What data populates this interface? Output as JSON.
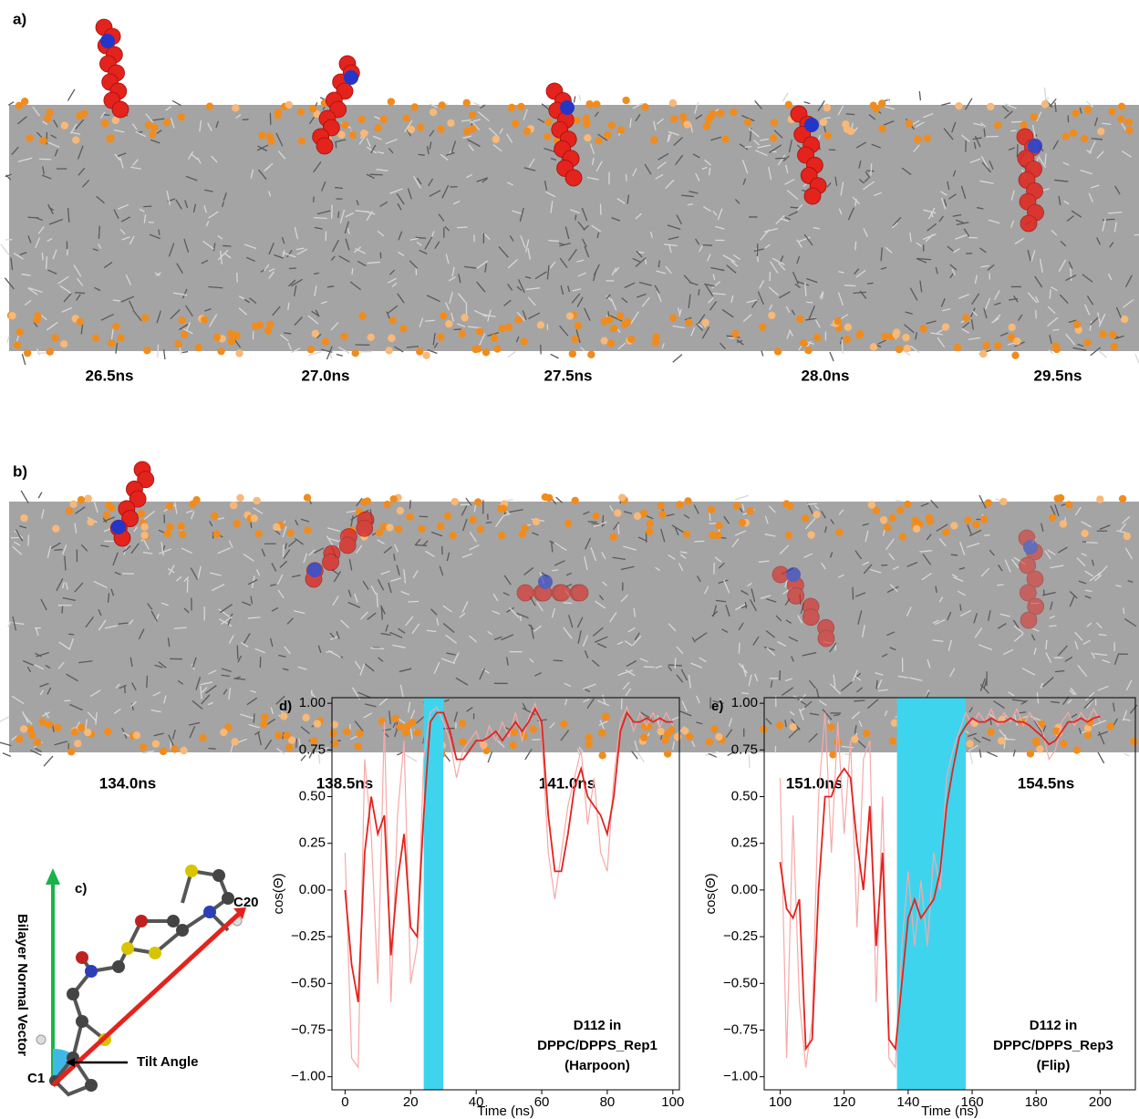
{
  "panels": {
    "a": {
      "label": "a)",
      "times": [
        "26.5ns",
        "27.0ns",
        "27.5ns",
        "28.0ns",
        "29.5ns"
      ]
    },
    "b": {
      "label": "b)",
      "times": [
        "134.0ns",
        "138.5ns",
        "141.0ns",
        "151.0ns",
        "154.5ns"
      ]
    },
    "c": {
      "label": "c)",
      "axis_label": "Bilayer Normal Vector",
      "atom_top": "C20",
      "atom_bottom": "C1",
      "angle_label": "Tilt Angle"
    }
  },
  "chart_data": [
    {
      "type": "line",
      "label": "d)",
      "xlabel": "Time (ns)",
      "ylabel": "cos(Θ)",
      "annotation": [
        "D112 in",
        "DPPC/DPPS_Rep1",
        "(Harpoon)"
      ],
      "xlim": [
        -4,
        102
      ],
      "ylim": [
        -1.07,
        1.03
      ],
      "xticks": [
        0,
        20,
        40,
        60,
        80,
        100
      ],
      "yticks": [
        {
          "value": 1,
          "label": "1.00"
        },
        {
          "value": 0.75,
          "label": "0.75"
        },
        {
          "value": 0.5,
          "label": "0.50"
        },
        {
          "value": 0.25,
          "label": "0.25"
        },
        {
          "value": 0,
          "label": "0.00"
        },
        {
          "value": -0.25,
          "label": "−0.25"
        },
        {
          "value": -0.5,
          "label": "−0.50"
        },
        {
          "value": -0.75,
          "label": "−0.75"
        },
        {
          "value": -1,
          "label": "−1.00"
        }
      ],
      "highlight": {
        "range": [
          24,
          30
        ],
        "color": "#3fd4ee"
      },
      "x": [
        0,
        2,
        4,
        6,
        8,
        10,
        12,
        14,
        16,
        18,
        20,
        22,
        24,
        26,
        28,
        30,
        32,
        34,
        36,
        38,
        40,
        42,
        44,
        46,
        48,
        50,
        52,
        54,
        56,
        58,
        60,
        62,
        64,
        66,
        68,
        70,
        72,
        74,
        76,
        78,
        80,
        82,
        84,
        86,
        88,
        90,
        92,
        94,
        96,
        98,
        100
      ],
      "series": [
        {
          "color": "#f6a9a9",
          "values": [
            0.2,
            -0.9,
            -0.95,
            0.7,
            0.3,
            -0.5,
            0.9,
            -0.6,
            0.4,
            0.8,
            -0.5,
            -0.3,
            0.7,
            0.95,
            0.98,
            0.9,
            0.8,
            0.6,
            0.75,
            0.8,
            0.85,
            0.75,
            0.88,
            0.8,
            0.9,
            0.82,
            0.95,
            0.8,
            0.92,
            1.0,
            0.85,
            0.2,
            -0.05,
            0.2,
            0.45,
            0.6,
            0.75,
            0.35,
            0.6,
            0.2,
            0.1,
            0.6,
            0.9,
            0.98,
            0.85,
            0.95,
            0.88,
            0.95,
            0.87,
            0.95,
            0.88
          ]
        },
        {
          "color": "#e3231c",
          "values": [
            0.0,
            -0.4,
            -0.6,
            0.2,
            0.5,
            0.3,
            0.4,
            -0.35,
            0.05,
            0.3,
            -0.2,
            -0.25,
            0.4,
            0.9,
            0.95,
            0.95,
            0.85,
            0.7,
            0.7,
            0.75,
            0.8,
            0.8,
            0.82,
            0.85,
            0.8,
            0.85,
            0.9,
            0.85,
            0.9,
            0.97,
            0.9,
            0.4,
            0.1,
            0.1,
            0.3,
            0.55,
            0.65,
            0.5,
            0.45,
            0.4,
            0.3,
            0.5,
            0.85,
            0.95,
            0.9,
            0.9,
            0.92,
            0.9,
            0.92,
            0.9,
            0.9
          ]
        }
      ]
    },
    {
      "type": "line",
      "label": "e)",
      "xlabel": "Time (ns)",
      "ylabel": "cos(Θ)",
      "annotation": [
        "D112 in",
        "DPPC/DPPS_Rep3",
        "(Flip)"
      ],
      "xlim": [
        95,
        211
      ],
      "ylim": [
        -1.07,
        1.03
      ],
      "xticks": [
        100,
        120,
        140,
        160,
        180,
        200
      ],
      "yticks": [
        {
          "value": 1,
          "label": "1.00"
        },
        {
          "value": 0.75,
          "label": "0.75"
        },
        {
          "value": 0.5,
          "label": "0.50"
        },
        {
          "value": 0.25,
          "label": "0.25"
        },
        {
          "value": 0,
          "label": "0.00"
        },
        {
          "value": -0.25,
          "label": "−0.25"
        },
        {
          "value": -0.5,
          "label": "−0.50"
        },
        {
          "value": -0.75,
          "label": "−0.75"
        },
        {
          "value": -1,
          "label": "−1.00"
        }
      ],
      "highlight": {
        "range": [
          136.5,
          158
        ],
        "color": "#3fd4ee"
      },
      "x": [
        100,
        102,
        104,
        106,
        108,
        110,
        112,
        114,
        116,
        118,
        120,
        122,
        124,
        126,
        128,
        130,
        132,
        134,
        136,
        138,
        140,
        142,
        144,
        146,
        148,
        150,
        152,
        154,
        156,
        158,
        160,
        162,
        164,
        166,
        168,
        170,
        172,
        174,
        176,
        178,
        180,
        182,
        184,
        186,
        188,
        190,
        192,
        194,
        196,
        198,
        200
      ],
      "series": [
        {
          "color": "#f6a9a9",
          "values": [
            0.6,
            -0.9,
            0.4,
            -0.6,
            -0.95,
            -0.7,
            0.5,
            0.95,
            0.2,
            0.9,
            0.3,
            0.8,
            -0.2,
            0.7,
            0.8,
            -0.6,
            0.5,
            -0.9,
            -0.95,
            -0.3,
            0.1,
            -0.3,
            0.05,
            -0.3,
            0.2,
            0.0,
            0.6,
            0.75,
            0.85,
            0.95,
            0.88,
            0.95,
            0.9,
            0.97,
            0.88,
            0.95,
            0.9,
            0.97,
            0.88,
            0.95,
            0.9,
            0.85,
            0.7,
            0.75,
            0.9,
            0.95,
            0.88,
            0.95,
            0.9,
            0.97,
            0.9
          ]
        },
        {
          "color": "#e3231c",
          "values": [
            0.15,
            -0.1,
            -0.15,
            -0.05,
            -0.85,
            -0.8,
            0.0,
            0.5,
            0.5,
            0.6,
            0.65,
            0.6,
            0.25,
            0.0,
            0.45,
            -0.3,
            0.2,
            -0.8,
            -0.85,
            -0.5,
            -0.15,
            -0.05,
            -0.15,
            -0.1,
            -0.05,
            0.1,
            0.45,
            0.65,
            0.82,
            0.88,
            0.92,
            0.9,
            0.9,
            0.92,
            0.9,
            0.9,
            0.92,
            0.9,
            0.9,
            0.88,
            0.85,
            0.82,
            0.78,
            0.8,
            0.85,
            0.9,
            0.9,
            0.92,
            0.9,
            0.92,
            0.93
          ]
        }
      ]
    }
  ]
}
